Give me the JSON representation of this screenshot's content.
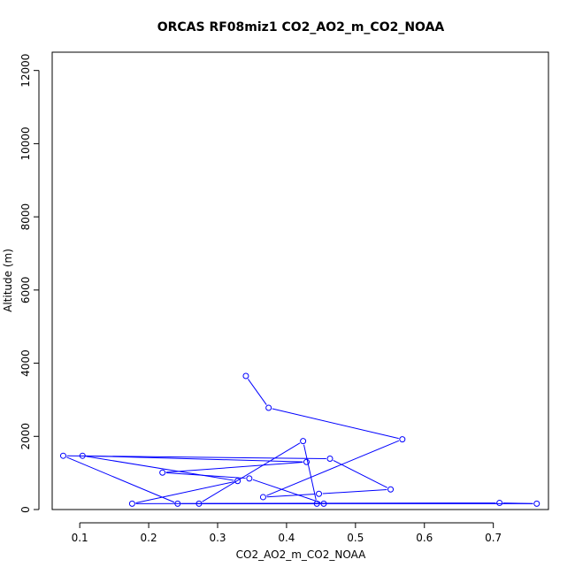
{
  "chart_data": {
    "type": "line",
    "title": "ORCAS RF08miz1 CO2_AO2_m_CO2_NOAA",
    "xlabel": "CO2_AO2_m_CO2_NOAA",
    "ylabel": "Altitude (m)",
    "xlim": [
      0.06,
      0.78
    ],
    "ylim": [
      0,
      12500
    ],
    "x_ticks": [
      0.1,
      0.2,
      0.3,
      0.4,
      0.5,
      0.6,
      0.7
    ],
    "y_ticks": [
      0,
      2000,
      4000,
      6000,
      8000,
      10000,
      12000
    ],
    "x_tick_labels": [
      "0.1",
      "0.2",
      "0.3",
      "0.4",
      "0.5",
      "0.6",
      "0.7"
    ],
    "y_tick_labels": [
      "0",
      "2000",
      "4000",
      "6000",
      "8000",
      "10000",
      "12000"
    ],
    "grid": false,
    "markers": "open-circle",
    "colors": {
      "series": "#0000ff",
      "axis": "#000000"
    },
    "series": [
      {
        "x": [
          0.341,
          0.374,
          0.568,
          0.366,
          0.447,
          0.551,
          0.463,
          0.076,
          0.242,
          0.763,
          0.709,
          0.176,
          0.329,
          0.104,
          0.429,
          0.22,
          0.346,
          0.454,
          0.273,
          0.424,
          0.444
        ],
        "y": [
          3650,
          2780,
          1920,
          340,
          430,
          550,
          1390,
          1470,
          160,
          160,
          180,
          160,
          780,
          1470,
          1300,
          1010,
          850,
          160,
          160,
          1870,
          160
        ]
      }
    ]
  }
}
